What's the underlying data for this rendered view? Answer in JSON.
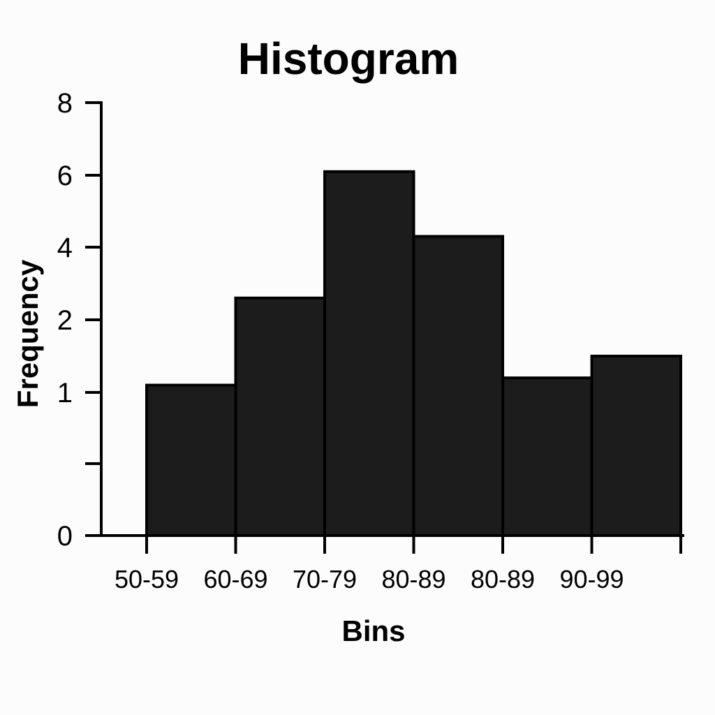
{
  "chart_data": {
    "type": "bar",
    "title": "Histogram",
    "xlabel": "Bins",
    "ylabel": "Frequency",
    "categories": [
      "50-59",
      "60-69",
      "70-79",
      "80-89",
      "80-89",
      "90-99"
    ],
    "values": [
      1.1,
      2.6,
      6.1,
      4.3,
      1.2,
      1.5
    ],
    "bar_edges": [
      0,
      1,
      2,
      3,
      4,
      5
    ],
    "y_ticks": [
      {
        "label": "8",
        "level": 8
      },
      {
        "label": "6",
        "level": 6
      },
      {
        "label": "4",
        "level": 4
      },
      {
        "label": "2",
        "level": 2
      },
      {
        "label": "1",
        "level": 1
      },
      {
        "label": "",
        "level": 0.5
      },
      {
        "label": "0",
        "level": 0
      }
    ],
    "grid": false,
    "legend": "none",
    "colors": {
      "bar": "#1c1c1c",
      "axis": "#000000",
      "background": "#fcfcfc"
    }
  }
}
